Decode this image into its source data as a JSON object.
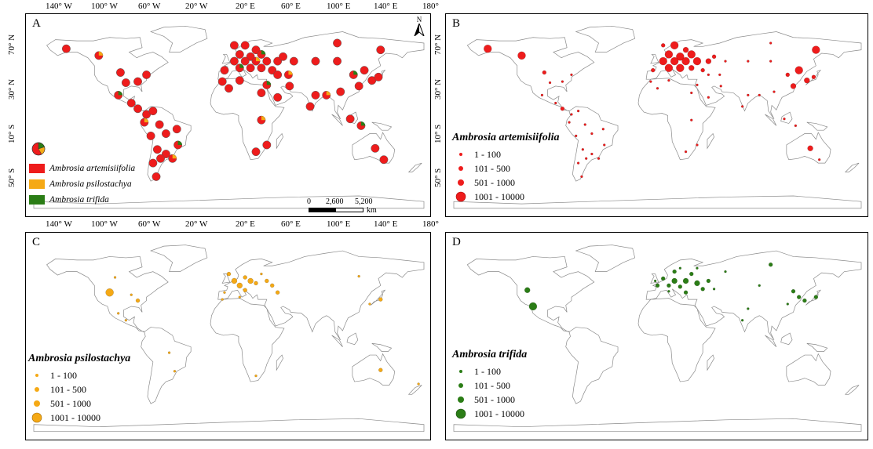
{
  "panels": {
    "A": {
      "letter": "A"
    },
    "B": {
      "letter": "B",
      "legend_title": "Ambrosia artemisiifolia"
    },
    "C": {
      "letter": "C",
      "legend_title": "Ambrosia psilostachya"
    },
    "D": {
      "letter": "D",
      "legend_title": "Ambrosia trifida"
    }
  },
  "longitude_labels": [
    "140° W",
    "100° W",
    "60° W",
    "20° W",
    "20° E",
    "60° E",
    "100° E",
    "140° E",
    "180°"
  ],
  "latitude_labels": [
    "70° N",
    "30° N",
    "10° S",
    "50° S"
  ],
  "species_legend": [
    {
      "name": "Ambrosia artemisiifolia",
      "color": "#ee1c1c"
    },
    {
      "name": "Ambrosia psilostachya",
      "color": "#f5a915"
    },
    {
      "name": "Ambrosia trifida",
      "color": "#2b7d16"
    }
  ],
  "size_classes": [
    "1 - 100",
    "101 - 500",
    "501 - 1000",
    "1001 - 10000"
  ],
  "scale_bar": {
    "labels": [
      "0",
      "2,600",
      "5,200"
    ],
    "unit": "km"
  },
  "north_arrow": "N",
  "colors": {
    "artemisiifolia": "#ee1c1c",
    "psilostachya": "#f5a915",
    "trifida": "#2b7d16",
    "land_outline": "#8a8a8a"
  }
}
